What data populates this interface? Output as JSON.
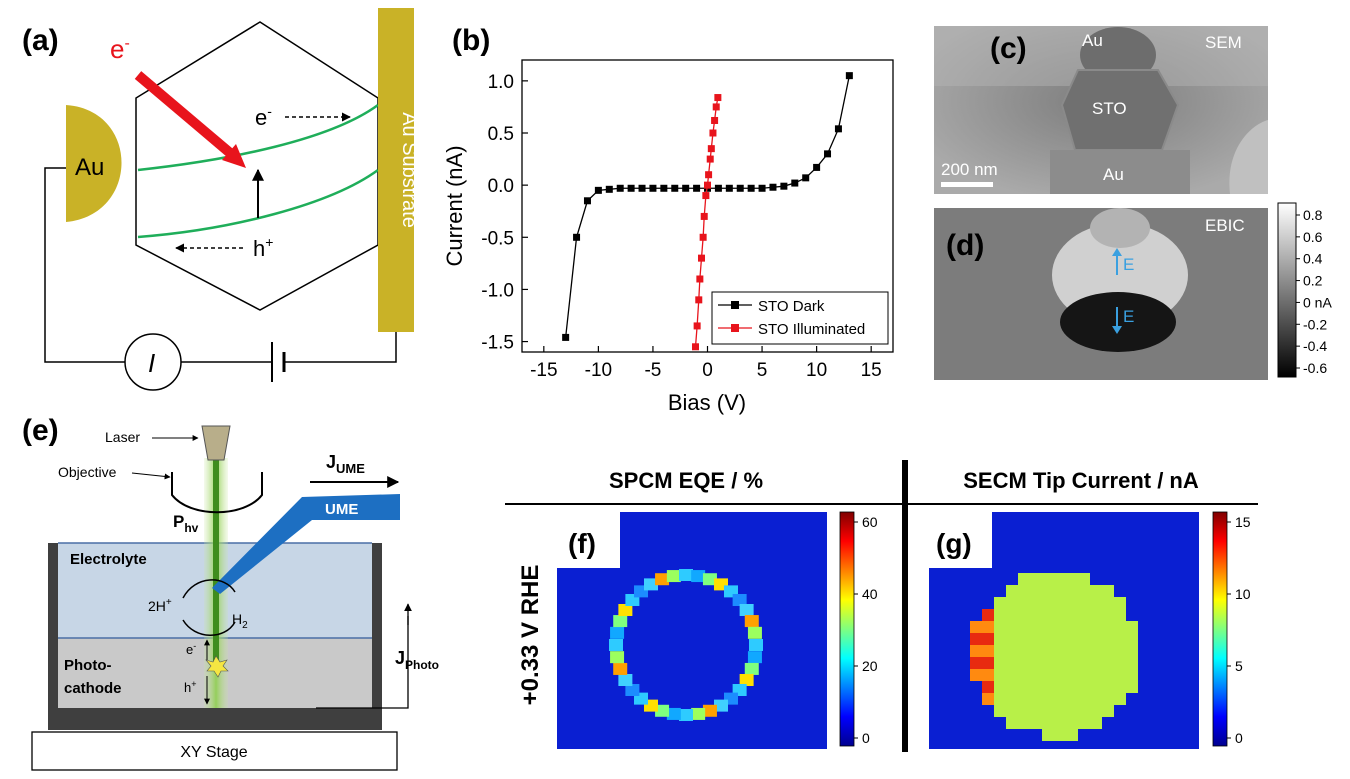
{
  "panel_a": {
    "label": "(a)",
    "electron": "e",
    "electron_sup": "-",
    "au": "Au",
    "au_substrate": "Au Substrate",
    "e_flow": "e",
    "e_flow_sup": "-",
    "h_flow": "h",
    "h_flow_sup": "+",
    "meter": "I"
  },
  "panel_b": {
    "label": "(b)",
    "colors": {
      "dark": "#000000",
      "illuminated": "#e8141c"
    }
  },
  "panel_c": {
    "label": "(c)",
    "mode": "SEM",
    "top": "Au",
    "mid": "STO",
    "bottom": "Au",
    "scalebar": "200 nm"
  },
  "panel_d": {
    "label": "(d)",
    "mode": "EBIC",
    "field": "E",
    "colorbar_ticks": [
      "0.8",
      "0.6",
      "0.4",
      "0.2",
      "0 nA",
      "-0.2",
      "-0.4",
      "-0.6"
    ]
  },
  "panel_e": {
    "label": "(e)",
    "laser": "Laser",
    "objective": "Objective",
    "j_ume": "J",
    "j_ume_sub": "UME",
    "ume": "UME",
    "p_hv": "P",
    "p_hv_sub": "hv",
    "electrolyte": "Electrolyte",
    "two_h": "2H",
    "two_h_sup": "+",
    "h2": "H",
    "h2_sub": "2",
    "photocathode_1": "Photo-",
    "photocathode_2": "cathode",
    "e_minus": "e",
    "e_minus_sup": "-",
    "h_plus": "h",
    "h_plus_sup": "+",
    "j_photo": "J",
    "j_photo_sub": "Photo",
    "stage": "XY Stage"
  },
  "panel_fg": {
    "header_f": "SPCM  EQE / %",
    "header_g": "SECM Tip Current / nA",
    "row_label": "+0.33 V RHE",
    "label_f": "(f)",
    "label_g": "(g)",
    "cbar_f_ticks": [
      "60",
      "40",
      "20",
      "0"
    ],
    "cbar_g_ticks": [
      "15",
      "10",
      "5",
      "0"
    ]
  },
  "chart_data": {
    "type": "line",
    "xlabel": "Bias (V)",
    "ylabel": "Current (nA)",
    "xlim": [
      -17,
      17
    ],
    "ylim": [
      -1.6,
      1.2
    ],
    "x_ticks": [
      "-15",
      "-10",
      "-5",
      "0",
      "5",
      "10",
      "15"
    ],
    "y_ticks": [
      "1.0",
      "0.5",
      "0.0",
      "-0.5",
      "-1.0",
      "-1.5"
    ],
    "x_tick_values": [
      -15,
      -10,
      -5,
      0,
      5,
      10,
      15
    ],
    "y_tick_values": [
      1.0,
      0.5,
      0.0,
      -0.5,
      -1.0,
      -1.5
    ],
    "legend_position": "bottom-right",
    "series": [
      {
        "name": "STO Dark",
        "x": [
          -13,
          -12,
          -11,
          -10,
          -9,
          -8,
          -7,
          -6,
          -5,
          -4,
          -3,
          -2,
          -1,
          0,
          1,
          2,
          3,
          4,
          5,
          6,
          7,
          8,
          9,
          10,
          11,
          12,
          13
        ],
        "y": [
          -1.46,
          -0.5,
          -0.15,
          -0.05,
          -0.04,
          -0.03,
          -0.03,
          -0.03,
          -0.03,
          -0.03,
          -0.03,
          -0.03,
          -0.03,
          -0.03,
          -0.03,
          -0.03,
          -0.03,
          -0.03,
          -0.03,
          -0.02,
          -0.01,
          0.02,
          0.07,
          0.17,
          0.3,
          0.54,
          1.05
        ]
      },
      {
        "name": "STO Illuminated",
        "x": [
          -1.1,
          -0.95,
          -0.8,
          -0.7,
          -0.55,
          -0.4,
          -0.3,
          -0.15,
          0.0,
          0.1,
          0.25,
          0.35,
          0.5,
          0.65,
          0.8,
          0.95
        ],
        "y": [
          -1.55,
          -1.35,
          -1.1,
          -0.9,
          -0.7,
          -0.5,
          -0.3,
          -0.1,
          0.0,
          0.1,
          0.25,
          0.35,
          0.5,
          0.62,
          0.75,
          0.84
        ]
      }
    ]
  }
}
